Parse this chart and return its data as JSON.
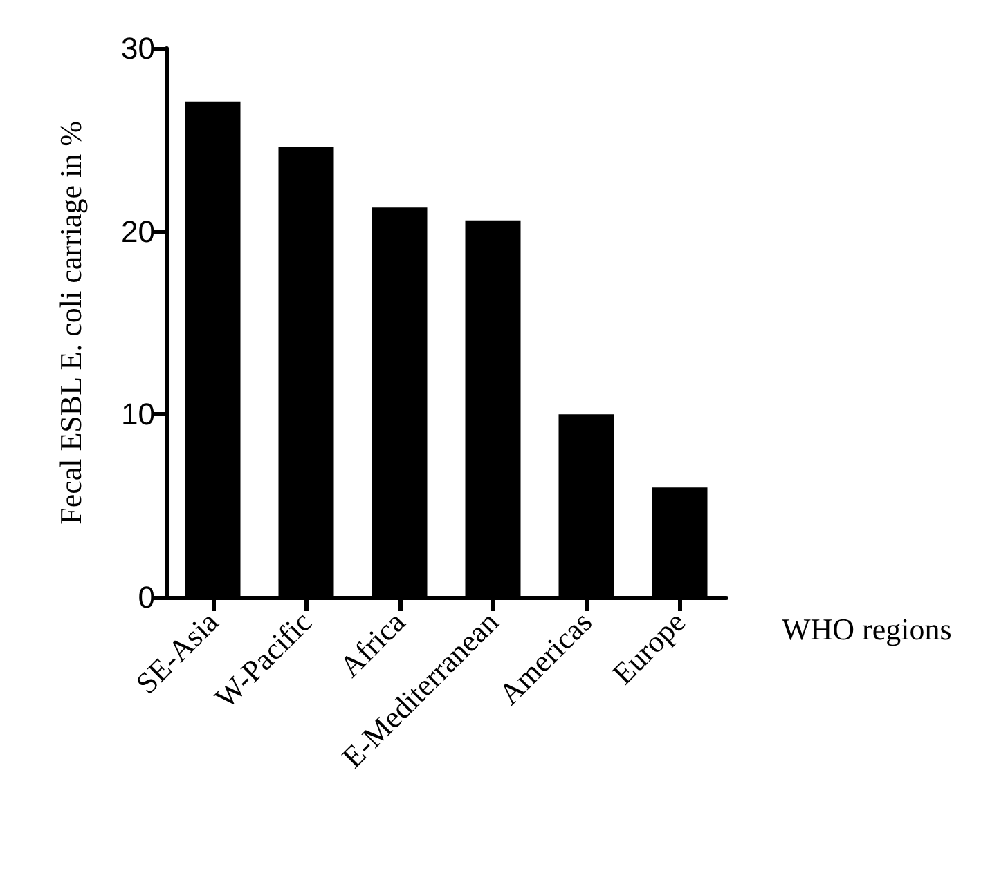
{
  "chart_data": {
    "type": "bar",
    "xlabel": "WHO regions",
    "ylabel": "Fecal ESBL E. coli carriage in %",
    "categories": [
      "SE-Asia",
      "W-Pacific",
      "Africa",
      "E-Mediterranean",
      "Americas",
      "Europe"
    ],
    "values": [
      27.1,
      24.6,
      21.3,
      20.6,
      10.0,
      6.0
    ],
    "color": "#000000",
    "ylim": [
      0,
      30
    ],
    "yticks": [
      0,
      10,
      20,
      30
    ],
    "grid": false
  }
}
